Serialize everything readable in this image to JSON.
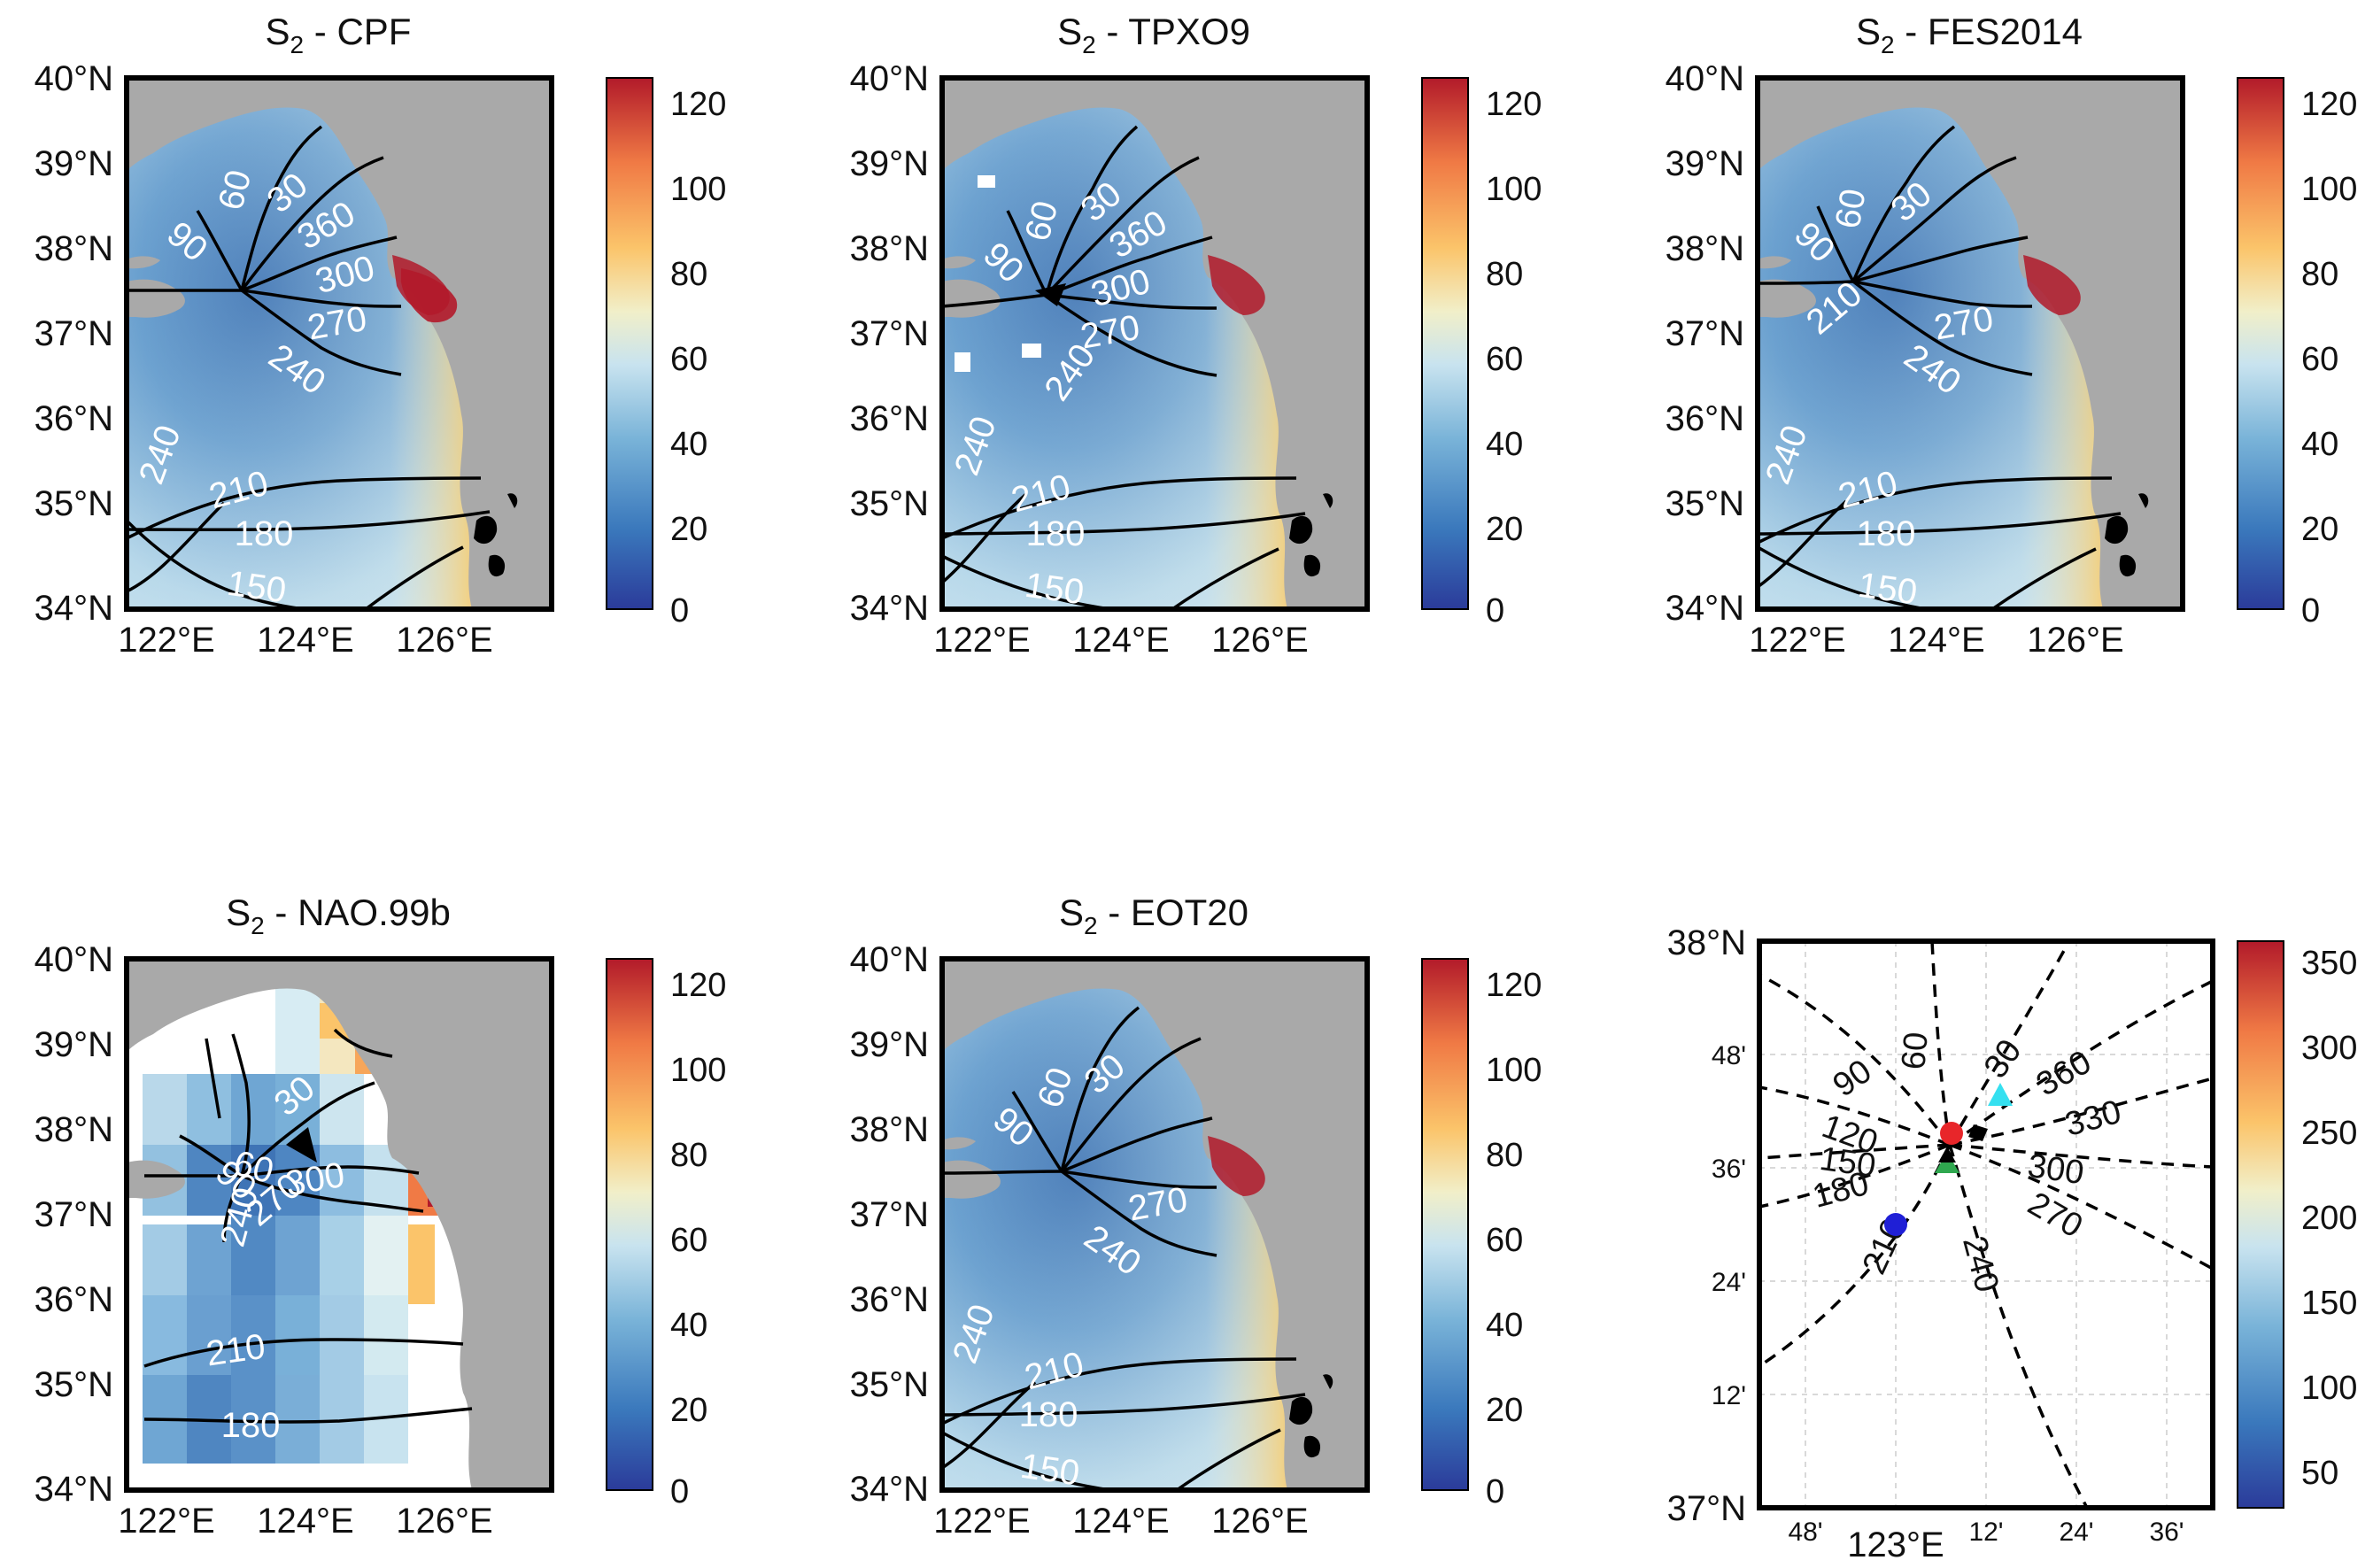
{
  "panels": [
    {
      "id": "cpf",
      "title_sym": "S",
      "title_sub": "2",
      "title_rest": " - CPF",
      "contour_labels": [
        "60",
        "30",
        "360",
        "90",
        "300",
        "270",
        "240",
        "240",
        "210",
        "180",
        "150"
      ]
    },
    {
      "id": "tpxo9",
      "title_sym": "S",
      "title_sub": "2",
      "title_rest": " - TPXO9",
      "contour_labels": [
        "60",
        "30",
        "360",
        "90",
        "300",
        "270",
        "240",
        "240",
        "210",
        "180",
        "150"
      ]
    },
    {
      "id": "fes2014",
      "title_sym": "S",
      "title_sub": "2",
      "title_rest": " - FES2014",
      "contour_labels": [
        "60",
        "30",
        "90",
        "210",
        "270",
        "240",
        "240",
        "210",
        "180",
        "150"
      ]
    },
    {
      "id": "nao99b",
      "title_sym": "S",
      "title_sub": "2",
      "title_rest": " - NAO.99b",
      "contour_labels": [
        "30",
        "60",
        "90",
        "300",
        "270",
        "240",
        "210",
        "180"
      ]
    },
    {
      "id": "eot20",
      "title_sym": "S",
      "title_sub": "2",
      "title_rest": " - EOT20",
      "contour_labels": [
        "60",
        "30",
        "90",
        "270",
        "240",
        "240",
        "210",
        "180",
        "150"
      ]
    }
  ],
  "map_axes": {
    "lat_ticks": [
      "40°N",
      "39°N",
      "38°N",
      "37°N",
      "36°N",
      "35°N",
      "34°N"
    ],
    "lon_ticks": [
      "122°E",
      "124°E",
      "126°E"
    ]
  },
  "amplitude_colorbar": {
    "ticks": [
      "120",
      "100",
      "80",
      "60",
      "40",
      "20",
      "0"
    ],
    "range": [
      0,
      125
    ]
  },
  "zoom_panel": {
    "lat_ticks": [
      "38°N",
      "48'",
      "36'",
      "24'",
      "12'",
      "37°N"
    ],
    "lon_ticks": [
      "48'",
      "123°E",
      "12'",
      "24'",
      "36'"
    ],
    "contour_labels": [
      "90",
      "60",
      "30",
      "360",
      "120",
      "330",
      "150",
      "180",
      "300",
      "210",
      "270",
      "240"
    ],
    "colorbar_ticks": [
      "350",
      "300",
      "250",
      "200",
      "150",
      "100",
      "50"
    ],
    "colorbar_range": [
      25,
      360
    ],
    "markers": [
      {
        "name": "red-circle",
        "color": "#e8262a"
      },
      {
        "name": "blue-circle",
        "color": "#1f1fd6"
      },
      {
        "name": "cyan-triangle",
        "color": "#35e0f0"
      },
      {
        "name": "black-diamond",
        "color": "#000000"
      },
      {
        "name": "green-triangle",
        "color": "#2fa84f"
      }
    ]
  },
  "colors": {
    "land": "#a9a9a9",
    "colormap": [
      "#2b3b9a",
      "#3a78bc",
      "#79b3d8",
      "#c8e3ef",
      "#f1efc9",
      "#fbc46a",
      "#f07a45",
      "#b21a2a"
    ]
  }
}
